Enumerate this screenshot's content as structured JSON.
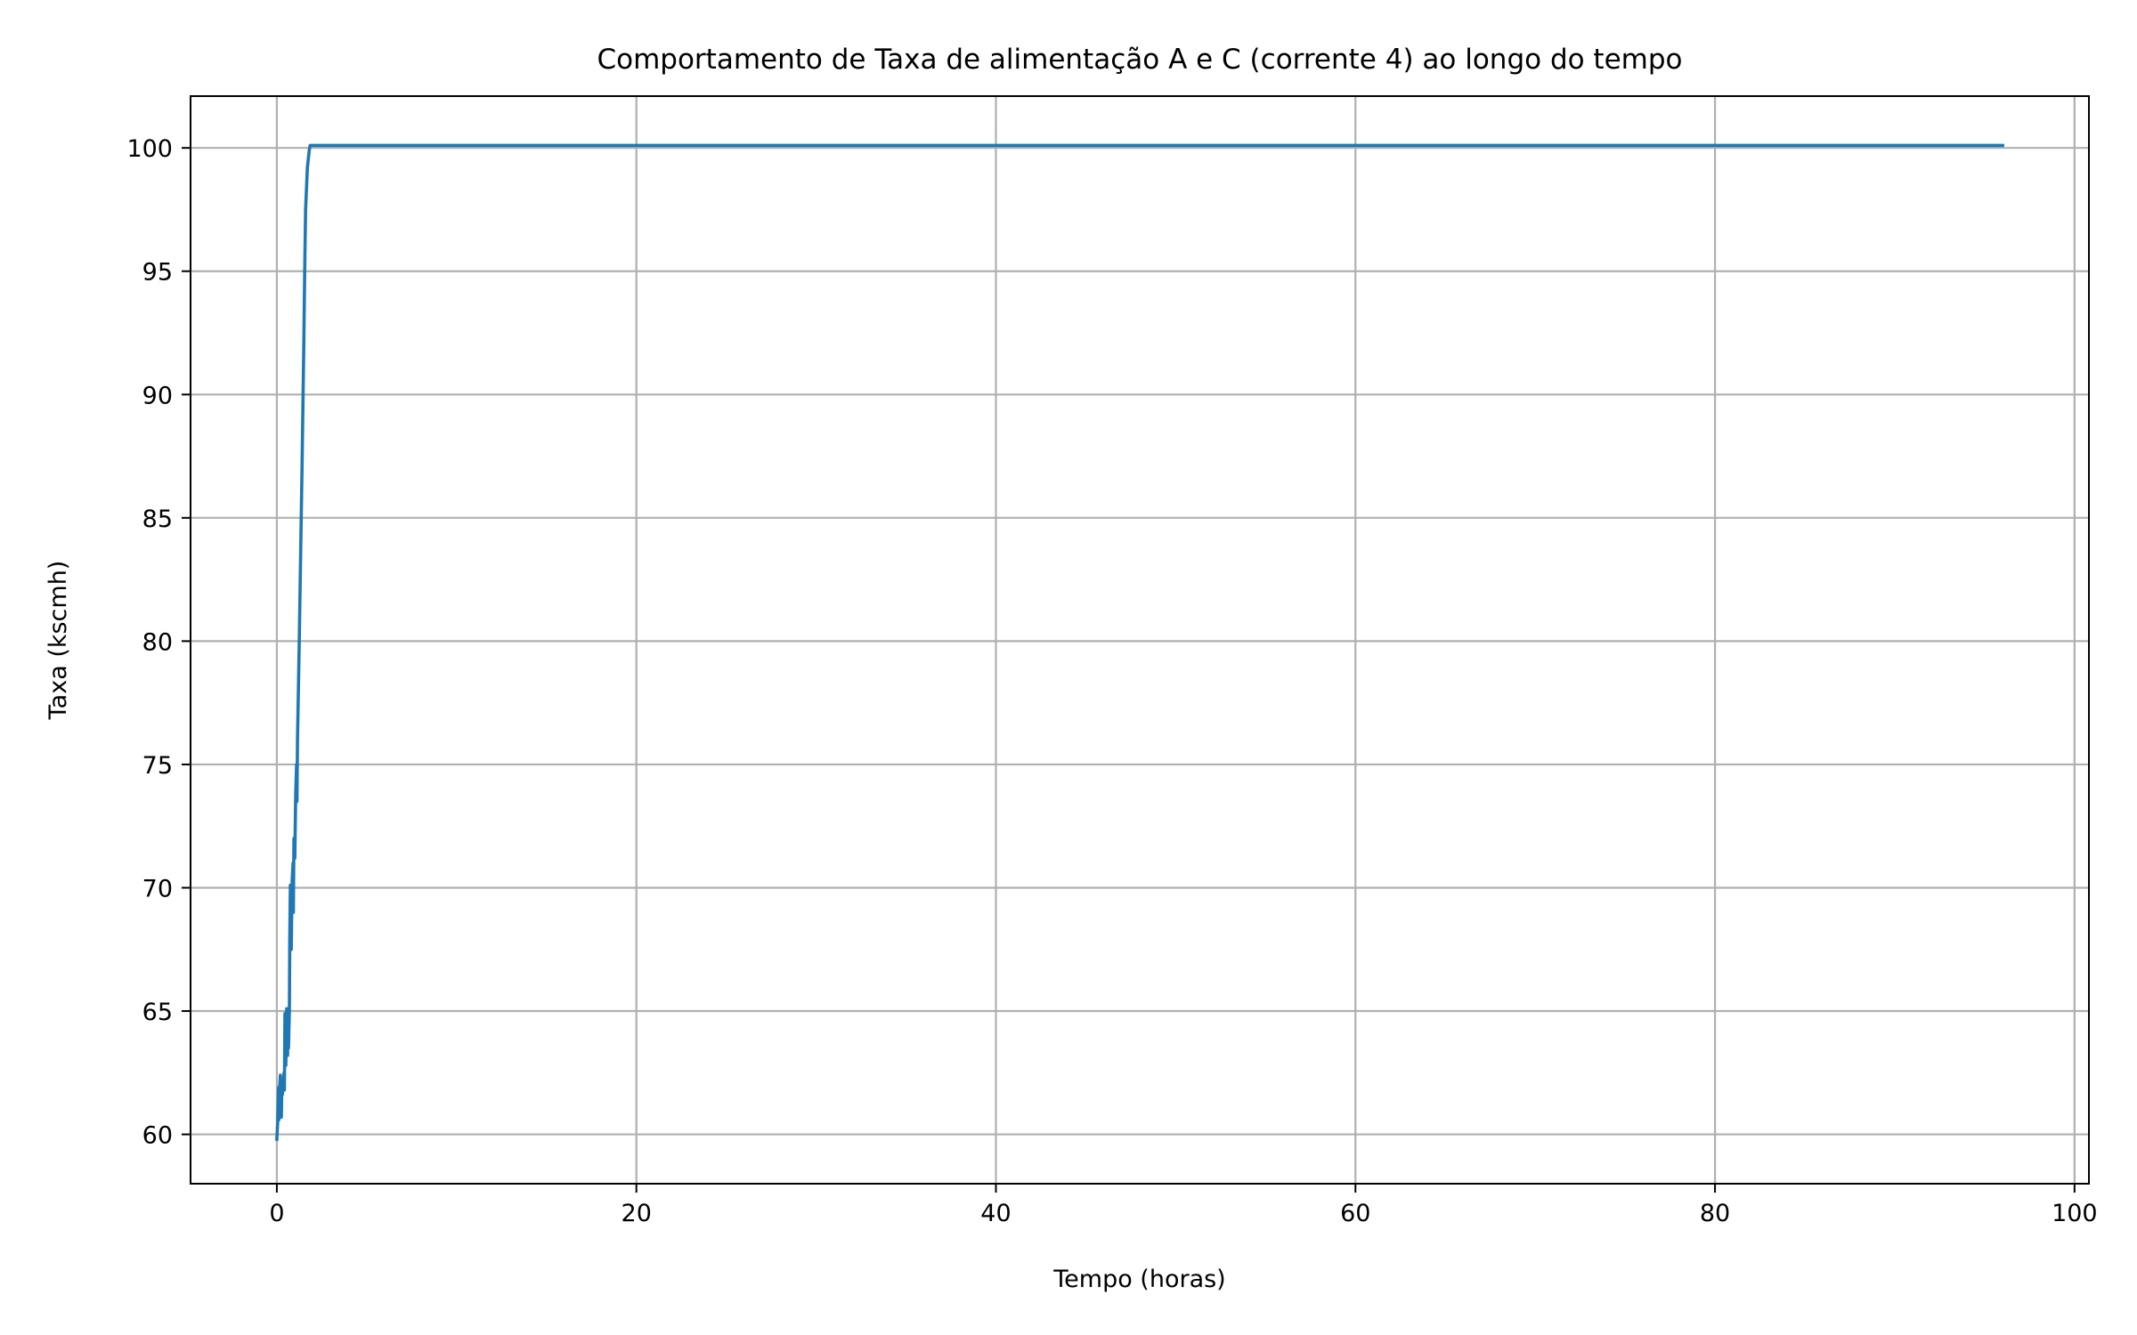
{
  "chart_data": {
    "type": "line",
    "title": "Comportamento de Taxa de alimentação A e C (corrente 4) ao longo do tempo",
    "xlabel": "Tempo (horas)",
    "ylabel": "Taxa (kscmh)",
    "xlim": [
      -4.8,
      100.8
    ],
    "ylim": [
      58.0,
      102.1
    ],
    "xticks": [
      0,
      20,
      40,
      60,
      80,
      100
    ],
    "yticks": [
      60,
      65,
      70,
      75,
      80,
      85,
      90,
      95,
      100
    ],
    "grid": true,
    "legend": null,
    "series": [
      {
        "color": "#1f77b4",
        "x": [
          0.0,
          0.05,
          0.1,
          0.12,
          0.15,
          0.2,
          0.25,
          0.28,
          0.3,
          0.35,
          0.4,
          0.42,
          0.45,
          0.5,
          0.55,
          0.6,
          0.62,
          0.65,
          0.7,
          0.72,
          0.75,
          0.8,
          0.85,
          0.9,
          0.92,
          0.95,
          1.0,
          1.05,
          1.1,
          1.12,
          1.15,
          1.2,
          1.25,
          1.3,
          1.35,
          1.4,
          1.45,
          1.5,
          1.55,
          1.6,
          1.7,
          1.8,
          1.85,
          1.9,
          2.0,
          2.2,
          3.0,
          10.0,
          20.0,
          40.0,
          60.0,
          80.0,
          96.0
        ],
        "y": [
          59.8,
          60.5,
          61.9,
          60.6,
          61.8,
          62.4,
          60.7,
          62.2,
          61.6,
          61.9,
          62.5,
          61.8,
          64.9,
          62.8,
          65.1,
          63.2,
          64.8,
          63.5,
          65.0,
          67.8,
          70.1,
          67.5,
          70.3,
          71.0,
          69.0,
          72.0,
          71.2,
          73.8,
          75.0,
          73.5,
          76.0,
          78.0,
          80.0,
          82.5,
          84.8,
          87.0,
          89.5,
          92.0,
          95.0,
          97.5,
          99.2,
          99.9,
          100.1,
          100.1,
          100.1,
          100.1,
          100.1,
          100.1,
          100.1,
          100.1,
          100.1,
          100.1,
          100.1
        ]
      }
    ]
  }
}
